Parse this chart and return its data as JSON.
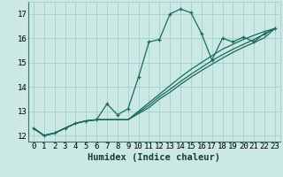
{
  "xlabel": "Humidex (Indice chaleur)",
  "background_color": "#cce8e4",
  "grid_color": "#99cccc",
  "line_color": "#1a6b5a",
  "x_data": [
    0,
    1,
    2,
    3,
    4,
    5,
    6,
    7,
    8,
    9,
    10,
    11,
    12,
    13,
    14,
    15,
    16,
    17,
    18,
    19,
    20,
    21,
    22,
    23
  ],
  "y_main": [
    12.3,
    12.0,
    12.1,
    12.3,
    12.5,
    12.6,
    12.65,
    13.3,
    12.85,
    13.1,
    14.4,
    15.85,
    15.95,
    17.0,
    17.2,
    17.05,
    16.2,
    15.1,
    16.0,
    15.85,
    16.05,
    15.85,
    16.2,
    16.4
  ],
  "y_line1": [
    12.3,
    12.0,
    12.1,
    12.3,
    12.5,
    12.6,
    12.65,
    12.65,
    12.65,
    12.65,
    13.0,
    13.35,
    13.7,
    14.05,
    14.4,
    14.72,
    15.0,
    15.28,
    15.55,
    15.75,
    15.95,
    16.12,
    16.28,
    16.4
  ],
  "y_line2": [
    12.3,
    12.0,
    12.1,
    12.3,
    12.5,
    12.6,
    12.65,
    12.65,
    12.65,
    12.65,
    12.95,
    13.25,
    13.6,
    13.9,
    14.22,
    14.52,
    14.8,
    15.08,
    15.32,
    15.55,
    15.75,
    15.95,
    16.17,
    16.4
  ],
  "y_line3": [
    12.3,
    12.0,
    12.1,
    12.3,
    12.5,
    12.6,
    12.65,
    12.65,
    12.65,
    12.65,
    12.9,
    13.15,
    13.5,
    13.78,
    14.1,
    14.4,
    14.67,
    14.93,
    15.18,
    15.42,
    15.63,
    15.82,
    16.02,
    16.4
  ],
  "ylim": [
    11.75,
    17.5
  ],
  "xlim": [
    -0.5,
    23.5
  ],
  "yticks": [
    12,
    13,
    14,
    15,
    16,
    17
  ],
  "xticks": [
    0,
    1,
    2,
    3,
    4,
    5,
    6,
    7,
    8,
    9,
    10,
    11,
    12,
    13,
    14,
    15,
    16,
    17,
    18,
    19,
    20,
    21,
    22,
    23
  ],
  "tick_fontsize": 6.5,
  "xlabel_fontsize": 7.5,
  "linewidth": 0.9,
  "markersize": 3.0
}
